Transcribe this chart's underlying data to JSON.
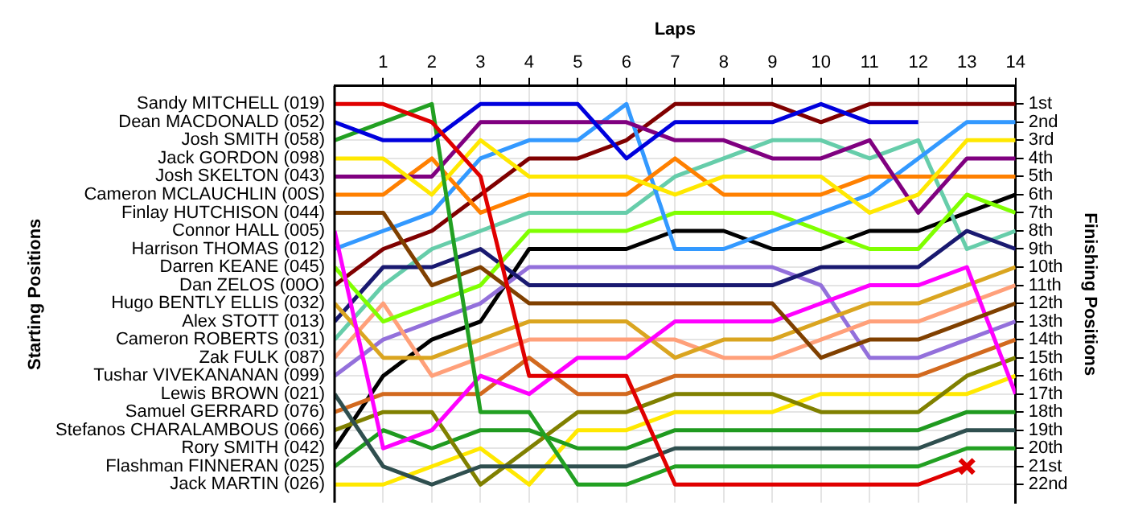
{
  "chart_data": {
    "type": "line",
    "xlabel": "Laps",
    "ylabel": "Finishing Positions",
    "annotations": [
      "Starting Positions"
    ],
    "x": [
      0,
      1,
      2,
      3,
      4,
      5,
      6,
      7,
      8,
      9,
      10,
      11,
      12,
      13,
      14
    ],
    "xlim": [
      0,
      14
    ],
    "xticks": [
      1,
      2,
      3,
      4,
      5,
      6,
      7,
      8,
      9,
      10,
      11,
      12,
      13,
      14
    ],
    "ylim": [
      23,
      0
    ],
    "yticks": [
      {
        "value": 1,
        "label": "1st"
      },
      {
        "value": 2,
        "label": "2nd"
      },
      {
        "value": 3,
        "label": "3rd"
      },
      {
        "value": 4,
        "label": "4th"
      },
      {
        "value": 5,
        "label": "5th"
      },
      {
        "value": 6,
        "label": "6th"
      },
      {
        "value": 7,
        "label": "7th"
      },
      {
        "value": 8,
        "label": "8th"
      },
      {
        "value": 9,
        "label": "9th"
      },
      {
        "value": 10,
        "label": "10th"
      },
      {
        "value": 11,
        "label": "11th"
      },
      {
        "value": 12,
        "label": "12th"
      },
      {
        "value": 13,
        "label": "13th"
      },
      {
        "value": 14,
        "label": "14th"
      },
      {
        "value": 15,
        "label": "15th"
      },
      {
        "value": 16,
        "label": "16th"
      },
      {
        "value": 17,
        "label": "17th"
      },
      {
        "value": 18,
        "label": "18th"
      },
      {
        "value": 19,
        "label": "19th"
      },
      {
        "value": 20,
        "label": "20th"
      },
      {
        "value": 21,
        "label": "21st"
      },
      {
        "value": 22,
        "label": "22nd"
      }
    ],
    "grid": true,
    "legend": "left",
    "series": [
      {
        "name": "Sandy MITCHELL (019)",
        "color": "#e00000",
        "values": [
          1,
          1,
          2,
          5,
          16,
          16,
          16,
          22,
          22,
          22,
          22,
          22,
          22,
          21,
          null
        ]
      },
      {
        "name": "Dean MACDONALD (052)",
        "color": "#0000dd",
        "values": [
          2,
          3,
          3,
          1,
          1,
          1,
          4,
          2,
          2,
          2,
          1,
          2,
          2,
          null,
          null
        ]
      },
      {
        "name": "Josh SMITH (058)",
        "color": "#22a022",
        "values": [
          3,
          2,
          1,
          18,
          18,
          22,
          22,
          21,
          21,
          21,
          21,
          21,
          21,
          20,
          20
        ]
      },
      {
        "name": "Jack GORDON (098)",
        "color": "#ffe800",
        "values": [
          4,
          4,
          6,
          3,
          5,
          5,
          5,
          6,
          5,
          5,
          5,
          7,
          6,
          3,
          3
        ]
      },
      {
        "name": "Josh SKELTON (043)",
        "color": "#800080",
        "values": [
          5,
          5,
          5,
          2,
          2,
          2,
          2,
          3,
          3,
          4,
          4,
          3,
          7,
          4,
          4
        ]
      },
      {
        "name": "Cameron MCLAUCHLIN (00S)",
        "color": "#ff8000",
        "values": [
          6,
          6,
          4,
          7,
          6,
          6,
          6,
          4,
          6,
          6,
          6,
          5,
          5,
          5,
          5
        ]
      },
      {
        "name": "Finlay HUTCHISON (044)",
        "color": "#804000",
        "values": [
          7,
          7,
          11,
          10,
          12,
          12,
          12,
          12,
          12,
          12,
          15,
          14,
          14,
          13,
          12
        ]
      },
      {
        "name": "Connor HALL (005)",
        "color": "#ff00ff",
        "values": [
          8,
          20,
          19,
          16,
          17,
          15,
          15,
          13,
          13,
          13,
          12,
          11,
          11,
          10,
          17
        ]
      },
      {
        "name": "Harrison THOMAS (012)",
        "color": "#3399ff",
        "values": [
          9,
          8,
          7,
          4,
          3,
          3,
          1,
          9,
          9,
          8,
          7,
          6,
          4,
          2,
          2
        ]
      },
      {
        "name": "Darren KEANE (045)",
        "color": "#80ff00",
        "values": [
          10,
          13,
          12,
          11,
          8,
          8,
          8,
          7,
          7,
          7,
          8,
          9,
          9,
          6,
          7
        ]
      },
      {
        "name": "Dan ZELOS (00O)",
        "color": "#800000",
        "values": [
          11,
          9,
          8,
          6,
          4,
          4,
          3,
          1,
          1,
          1,
          2,
          1,
          1,
          1,
          1
        ]
      },
      {
        "name": "Hugo BENTLY ELLIS (032)",
        "color": "#daa520",
        "values": [
          12,
          15,
          15,
          14,
          13,
          13,
          13,
          15,
          14,
          14,
          13,
          12,
          12,
          11,
          10
        ]
      },
      {
        "name": "Alex STOTT (013)",
        "color": "#191970",
        "values": [
          13,
          10,
          10,
          9,
          11,
          11,
          11,
          11,
          11,
          11,
          10,
          10,
          10,
          8,
          9
        ]
      },
      {
        "name": "Cameron ROBERTS (031)",
        "color": "#66cdaa",
        "values": [
          14,
          11,
          9,
          8,
          7,
          7,
          7,
          5,
          4,
          3,
          3,
          4,
          3,
          9,
          8
        ]
      },
      {
        "name": "Zak FULK (087)",
        "color": "#ffa07a",
        "values": [
          15,
          12,
          16,
          15,
          14,
          14,
          14,
          14,
          15,
          15,
          14,
          13,
          13,
          12,
          11
        ]
      },
      {
        "name": "Tushar VIVEKANANAN (099)",
        "color": "#9370db",
        "values": [
          16,
          14,
          13,
          12,
          10,
          10,
          10,
          10,
          10,
          10,
          11,
          15,
          15,
          14,
          13
        ]
      },
      {
        "name": "Lewis BROWN (021)",
        "color": "#2f4f4f",
        "values": [
          17,
          21,
          22,
          21,
          21,
          21,
          21,
          20,
          20,
          20,
          20,
          20,
          20,
          19,
          19
        ]
      },
      {
        "name": "Samuel GERRARD (076)",
        "color": "#d2691e",
        "values": [
          18,
          17,
          17,
          17,
          15,
          17,
          17,
          16,
          16,
          16,
          16,
          16,
          16,
          15,
          14
        ]
      },
      {
        "name": "Stefanos CHARALAMBOUS (066)",
        "color": "#808000",
        "values": [
          19,
          18,
          18,
          22,
          20,
          18,
          18,
          17,
          17,
          17,
          18,
          18,
          18,
          16,
          15
        ]
      },
      {
        "name": "Rory SMITH (042)",
        "color": "#000000",
        "values": [
          20,
          16,
          14,
          13,
          9,
          9,
          9,
          8,
          8,
          9,
          9,
          8,
          8,
          7,
          6
        ]
      },
      {
        "name": "Flashman FINNERAN (025)",
        "color": "#1f9a1f",
        "values": [
          21,
          19,
          20,
          19,
          19,
          20,
          20,
          19,
          19,
          19,
          19,
          19,
          19,
          18,
          18
        ]
      },
      {
        "name": "Jack MARTIN (026)",
        "color": "#ffe800",
        "values": [
          22,
          22,
          21,
          20,
          22,
          19,
          19,
          18,
          18,
          18,
          17,
          17,
          17,
          17,
          16
        ]
      },
      {
        "type": "scatter",
        "color": "#e00000",
        "marker": "cross",
        "x": [
          13
        ],
        "values": [
          21
        ]
      }
    ]
  }
}
